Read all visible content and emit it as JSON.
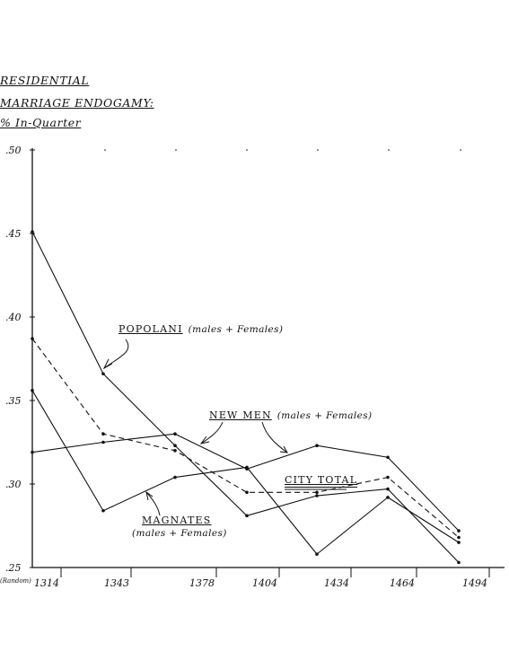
{
  "title_lines": [
    "RESIDENTIAL",
    "MARRIAGE ENDOGAMY:",
    "% In-Quarter"
  ],
  "annotations": {
    "popolani": {
      "name": "POPOLANI",
      "note": "(males + Females)"
    },
    "new_men": {
      "name": "NEW MEN",
      "note": "(males + Females)"
    },
    "city_total": {
      "name": "CITY TOTAL"
    },
    "magnates": {
      "name": "MAGNATES",
      "note": "(males + Females)"
    }
  },
  "chart_data": {
    "type": "line",
    "title": "RESIDENTIAL MARRIAGE ENDOGAMY: % In-Quarter",
    "xlabel": "",
    "ylabel": "",
    "ylim": [
      0.25,
      0.5
    ],
    "y_ticks": [
      ".25",
      ".30",
      ".35",
      ".40",
      ".45",
      ".50"
    ],
    "x_ticks": [
      "(Random) 1314",
      "1343",
      "1378",
      "1404",
      "1434",
      "1464",
      "1494"
    ],
    "grid": false,
    "series": [
      {
        "name": "POPOLANI",
        "style": "solid",
        "values": [
          0.451,
          0.366,
          0.323,
          0.281,
          0.293,
          0.297,
          0.253
        ]
      },
      {
        "name": "CITY TOTAL",
        "style": "dashed",
        "values": [
          0.387,
          0.33,
          0.32,
          0.295,
          0.295,
          0.304,
          0.268
        ]
      },
      {
        "name": "NEW MEN",
        "style": "solid",
        "values": [
          0.319,
          0.325,
          0.33,
          0.309,
          0.323,
          0.316,
          0.272
        ]
      },
      {
        "name": "MAGNATES",
        "style": "solid",
        "values": [
          0.356,
          0.284,
          0.304,
          0.31,
          0.258,
          0.292,
          0.265
        ]
      }
    ],
    "colors": {
      "ink": "#111111",
      "background": "#ffffff"
    }
  }
}
